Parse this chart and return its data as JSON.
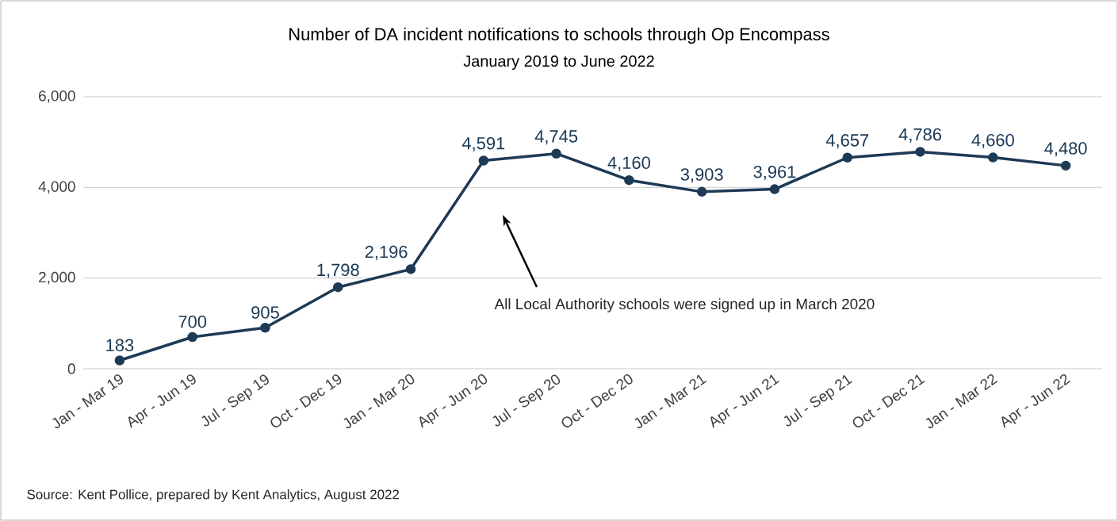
{
  "chart_data": {
    "type": "line",
    "title": "Number of DA incident notifications to schools through Op Encompass",
    "subtitle": "January 2019 to June 2022",
    "categories": [
      "Jan - Mar 19",
      "Apr - Jun 19",
      "Jul - Sep 19",
      "Oct - Dec 19",
      "Jan - Mar 20",
      "Apr - Jun 20",
      "Jul - Sep 20",
      "Oct - Dec 20",
      "Jan - Mar 21",
      "Apr - Jun 21",
      "Jul - Sep 21",
      "Oct - Dec 21",
      "Jan - Mar 22",
      "Apr - Jun 22"
    ],
    "series": [
      {
        "color": "#1d3a56",
        "values": [
          183,
          700,
          905,
          1798,
          2196,
          4591,
          4745,
          4160,
          3903,
          3961,
          4657,
          4786,
          4660,
          4480
        ],
        "value_labels": [
          "183",
          "700",
          "905",
          "1,798",
          "2,196",
          "4,591",
          "4,745",
          "4,160",
          "3,903",
          "3,961",
          "4,657",
          "4,786",
          "4,660",
          "4,480"
        ]
      }
    ],
    "ylim": [
      0,
      6000
    ],
    "yticks": [
      {
        "value": 0,
        "label": "0"
      },
      {
        "value": 2000,
        "label": "2,000"
      },
      {
        "value": 4000,
        "label": "4,000"
      },
      {
        "value": 6000,
        "label": "6,000"
      }
    ],
    "grid": "y",
    "marker": "circle",
    "line_style": "solid",
    "annotations": [
      "All Local Authority schools were signed up in March 2020",
      "Source: Kent Pollice, prepared by Kent Analytics, August 2022"
    ]
  }
}
